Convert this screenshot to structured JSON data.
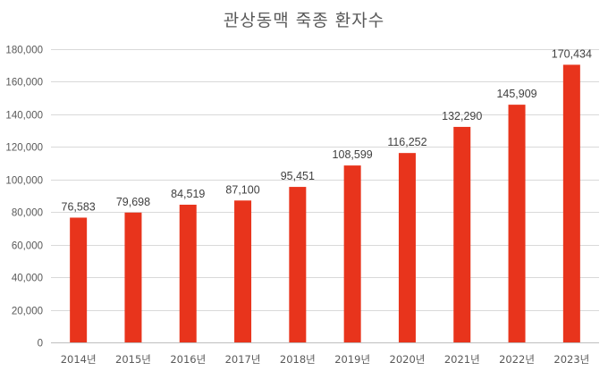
{
  "chart_data": {
    "type": "bar",
    "title": "관상동맥 죽종 환자수",
    "xlabel": "",
    "ylabel": "",
    "categories": [
      "2014년",
      "2015년",
      "2016년",
      "2017년",
      "2018년",
      "2019년",
      "2020년",
      "2021년",
      "2022년",
      "2023년"
    ],
    "values": [
      76583,
      79698,
      84519,
      87100,
      95451,
      108599,
      116252,
      132290,
      145909,
      170434
    ],
    "value_labels": [
      "76,583",
      "79,698",
      "84,519",
      "87,100",
      "95,451",
      "108,599",
      "116,252",
      "132,290",
      "145,909",
      "170,434"
    ],
    "ylim": [
      0,
      180000
    ],
    "y_ticks": [
      0,
      20000,
      40000,
      60000,
      80000,
      100000,
      120000,
      140000,
      160000,
      180000
    ],
    "y_tick_labels": [
      "0",
      "20,000",
      "40,000",
      "60,000",
      "80,000",
      "100,000",
      "120,000",
      "140,000",
      "160,000",
      "180,000"
    ],
    "grid": true,
    "legend": "none",
    "bar_color": "#e8341c"
  }
}
